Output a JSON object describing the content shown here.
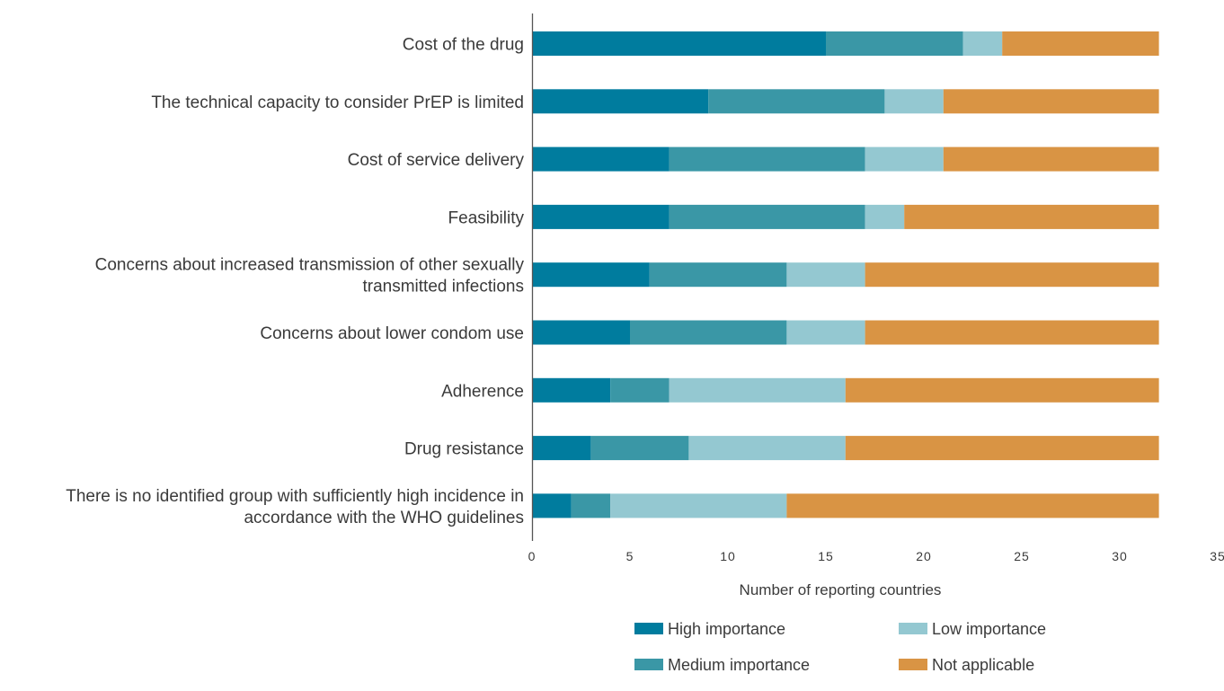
{
  "chart_data": {
    "type": "bar",
    "orientation": "horizontal",
    "stacked": true,
    "categories": [
      [
        "Cost of the drug"
      ],
      [
        "The technical capacity to consider PrEP is limited"
      ],
      [
        "Cost of service delivery"
      ],
      [
        "Feasibility"
      ],
      [
        "Concerns about increased transmission of other sexually",
        "transmitted infections"
      ],
      [
        "Concerns about lower condom use"
      ],
      [
        "Adherence"
      ],
      [
        "Drug resistance"
      ],
      [
        "There is no identified group with sufficiently high incidence in",
        "accordance with the WHO guidelines"
      ]
    ],
    "series": [
      {
        "name": "High importance",
        "color": "#007c9e",
        "values": [
          15,
          9,
          7,
          7,
          6,
          5,
          4,
          3,
          2
        ]
      },
      {
        "name": "Medium importance",
        "color": "#3a97a6",
        "values": [
          7,
          9,
          10,
          10,
          7,
          8,
          3,
          5,
          2
        ]
      },
      {
        "name": "Low importance",
        "color": "#94c8d1",
        "values": [
          2,
          3,
          4,
          2,
          4,
          4,
          9,
          8,
          9
        ]
      },
      {
        "name": "Not applicable",
        "color": "#d99444",
        "values": [
          8,
          11,
          11,
          13,
          15,
          15,
          16,
          16,
          19
        ]
      }
    ],
    "xlabel": "Number of reporting countries",
    "xlim": [
      0,
      35
    ],
    "xticks": [
      0,
      5,
      10,
      15,
      20,
      25,
      30,
      35
    ],
    "grid": false,
    "legend_position": "bottom"
  }
}
